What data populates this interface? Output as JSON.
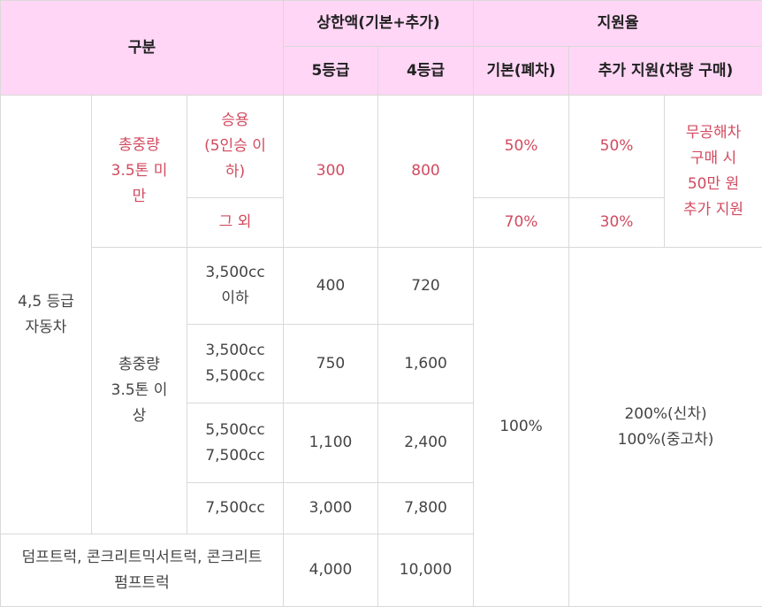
{
  "header": {
    "category": "구분",
    "cap_group": "상한액(기본+추가)",
    "grade5": "5등급",
    "grade4": "4등급",
    "rate_group": "지원율",
    "rate_basic": "기본(폐차)",
    "rate_extra": "추가 지원(차량 구매)"
  },
  "rows": {
    "vehicle_group": [
      "4,5 등급",
      "자동차"
    ],
    "under35": {
      "label": [
        "총중량",
        "3.5톤 미",
        "만"
      ],
      "passenger": [
        "승용",
        "(5인승 이",
        "하)"
      ],
      "other": "그 외",
      "cap5": "300",
      "cap4": "800",
      "passenger_basic": "50%",
      "passenger_extra": "50%",
      "other_basic": "70%",
      "other_extra": "30%",
      "note": [
        "무공해차",
        "구매 시",
        "50만 원",
        "추가 지원"
      ]
    },
    "over35": {
      "label": [
        "총중량",
        "3.5톤 이",
        "상"
      ],
      "bands": [
        {
          "lines": [
            "3,500cc",
            "이하"
          ],
          "cap5": "400",
          "cap4": "720"
        },
        {
          "lines": [
            "3,500cc",
            "5,500cc"
          ],
          "cap5": "750",
          "cap4": "1,600"
        },
        {
          "lines": [
            "5,500cc",
            "7,500cc"
          ],
          "cap5": "1,100",
          "cap4": "2,400"
        },
        {
          "lines": [
            "7,500cc"
          ],
          "cap5": "3,000",
          "cap4": "7,800"
        }
      ],
      "basic_rate": "100%",
      "extra_rate": [
        "200%(신차)",
        "100%(중고차)"
      ]
    },
    "special": {
      "label": [
        "덤프트럭, 콘크리트믹서트럭, 콘크리트",
        "펌프트럭"
      ],
      "cap5": "4,000",
      "cap4": "10,000"
    }
  }
}
